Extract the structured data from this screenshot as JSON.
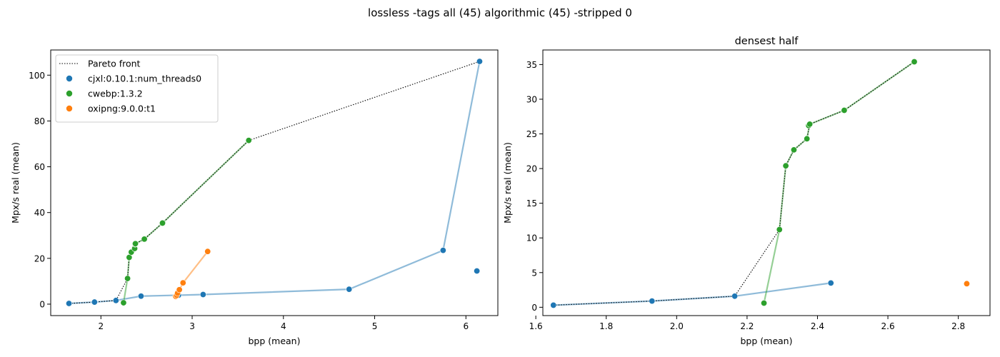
{
  "figure": {
    "suptitle": "lossless -tags all (45) algorithmic (45) -stripped 0"
  },
  "colors": {
    "cjxl": "#1f77b4",
    "cwebp": "#2ca02c",
    "oxipng": "#ff7f0e",
    "pareto": "#000000"
  },
  "chart_data": [
    {
      "type": "scatter",
      "title": "",
      "xlabel": "bpp (mean)",
      "ylabel": "Mpx/s real (mean)",
      "xlim": [
        1.45,
        6.35
      ],
      "ylim": [
        -5,
        111
      ],
      "xticks": [
        2,
        3,
        4,
        5,
        6
      ],
      "yticks": [
        0,
        20,
        40,
        60,
        80,
        100
      ],
      "grid": false,
      "legend": {
        "placement": "top-left",
        "entries": [
          "Pareto front",
          "cjxl:0.10.1:num_threads0",
          "cwebp:1.3.2",
          "oxipng:9.0.0:t1"
        ]
      },
      "series": [
        {
          "name": "cjxl:0.10.1:num_threads0",
          "color_key": "cjxl",
          "points": [
            [
              1.65,
              0.3
            ],
            [
              1.93,
              0.9
            ],
            [
              2.165,
              1.6
            ],
            [
              2.44,
              3.5
            ],
            [
              2.85,
              3.9
            ],
            [
              3.12,
              4.2
            ],
            [
              4.72,
              6.5
            ],
            [
              5.75,
              23.5
            ],
            [
              6.12,
              14.5
            ],
            [
              6.15,
              106
            ]
          ],
          "line": [
            [
              1.65,
              0.3
            ],
            [
              1.93,
              0.9
            ],
            [
              2.165,
              1.6
            ],
            [
              2.44,
              3.5
            ],
            [
              2.85,
              3.9
            ],
            [
              3.12,
              4.2
            ],
            [
              4.72,
              6.5
            ],
            [
              5.75,
              23.5
            ],
            [
              6.15,
              106
            ]
          ]
        },
        {
          "name": "cwebp:1.3.2",
          "color_key": "cwebp",
          "points": [
            [
              2.248,
              0.6
            ],
            [
              2.292,
              11.2
            ],
            [
              2.31,
              20.4
            ],
            [
              2.333,
              22.7
            ],
            [
              2.37,
              24.3
            ],
            [
              2.375,
              26.2
            ],
            [
              2.378,
              26.4
            ],
            [
              2.476,
              28.4
            ],
            [
              2.675,
              35.4
            ],
            [
              3.62,
              71.5
            ]
          ],
          "line": [
            [
              2.248,
              0.6
            ],
            [
              2.292,
              11.2
            ],
            [
              2.31,
              20.4
            ],
            [
              2.333,
              22.7
            ],
            [
              2.37,
              24.3
            ],
            [
              2.378,
              26.4
            ],
            [
              2.476,
              28.4
            ],
            [
              2.675,
              35.4
            ],
            [
              3.62,
              71.5
            ]
          ]
        },
        {
          "name": "oxipng:9.0.0:t1",
          "color_key": "oxipng",
          "points": [
            [
              2.82,
              3.4
            ],
            [
              2.83,
              3.8
            ],
            [
              2.84,
              4.8
            ],
            [
              2.86,
              6.3
            ],
            [
              2.9,
              9.3
            ],
            [
              3.17,
              23
            ]
          ],
          "line": [
            [
              2.82,
              3.4
            ],
            [
              2.83,
              3.8
            ],
            [
              2.84,
              4.8
            ],
            [
              2.86,
              6.3
            ],
            [
              2.9,
              9.3
            ],
            [
              3.17,
              23
            ]
          ]
        }
      ],
      "pareto_front": [
        [
          1.65,
          0.3
        ],
        [
          1.93,
          0.9
        ],
        [
          2.165,
          1.6
        ],
        [
          2.292,
          11.2
        ],
        [
          2.31,
          20.4
        ],
        [
          2.333,
          22.7
        ],
        [
          2.37,
          24.3
        ],
        [
          2.378,
          26.4
        ],
        [
          2.476,
          28.4
        ],
        [
          2.675,
          35.4
        ],
        [
          3.62,
          71.5
        ],
        [
          6.15,
          106
        ]
      ]
    },
    {
      "type": "scatter",
      "title": "densest half",
      "xlabel": "bpp (mean)",
      "ylabel": "Mpx/s real (mean)",
      "xlim": [
        1.62,
        2.89
      ],
      "ylim": [
        -1.2,
        37.1
      ],
      "xticks": [
        1.6,
        1.8,
        2.0,
        2.2,
        2.4,
        2.6,
        2.8
      ],
      "xtick_labels": [
        "1.6",
        "1.8",
        "2.0",
        "2.2",
        "2.4",
        "2.6",
        "2.8"
      ],
      "yticks": [
        0,
        5,
        10,
        15,
        20,
        25,
        30,
        35
      ],
      "grid": false,
      "series": [
        {
          "name": "cjxl:0.10.1:num_threads0",
          "color_key": "cjxl",
          "points": [
            [
              1.65,
              0.3
            ],
            [
              1.93,
              0.9
            ],
            [
              2.165,
              1.6
            ],
            [
              2.438,
              3.5
            ]
          ],
          "line": [
            [
              1.65,
              0.3
            ],
            [
              1.93,
              0.9
            ],
            [
              2.165,
              1.6
            ],
            [
              2.438,
              3.5
            ]
          ]
        },
        {
          "name": "cwebp:1.3.2",
          "color_key": "cwebp",
          "points": [
            [
              2.248,
              0.6
            ],
            [
              2.292,
              11.2
            ],
            [
              2.31,
              20.4
            ],
            [
              2.333,
              22.7
            ],
            [
              2.37,
              24.3
            ],
            [
              2.375,
              26.2
            ],
            [
              2.378,
              26.4
            ],
            [
              2.476,
              28.4
            ],
            [
              2.675,
              35.4
            ]
          ],
          "line": [
            [
              2.248,
              0.6
            ],
            [
              2.292,
              11.2
            ],
            [
              2.31,
              20.4
            ],
            [
              2.333,
              22.7
            ],
            [
              2.37,
              24.3
            ],
            [
              2.378,
              26.4
            ],
            [
              2.476,
              28.4
            ],
            [
              2.675,
              35.4
            ]
          ]
        },
        {
          "name": "oxipng:9.0.0:t1",
          "color_key": "oxipng",
          "points": [
            [
              2.824,
              3.4
            ]
          ],
          "line": []
        }
      ],
      "pareto_front": [
        [
          1.65,
          0.3
        ],
        [
          1.93,
          0.9
        ],
        [
          2.165,
          1.6
        ],
        [
          2.292,
          11.2
        ],
        [
          2.31,
          20.4
        ],
        [
          2.333,
          22.7
        ],
        [
          2.37,
          24.3
        ],
        [
          2.378,
          26.4
        ],
        [
          2.476,
          28.4
        ],
        [
          2.675,
          35.4
        ]
      ]
    }
  ]
}
